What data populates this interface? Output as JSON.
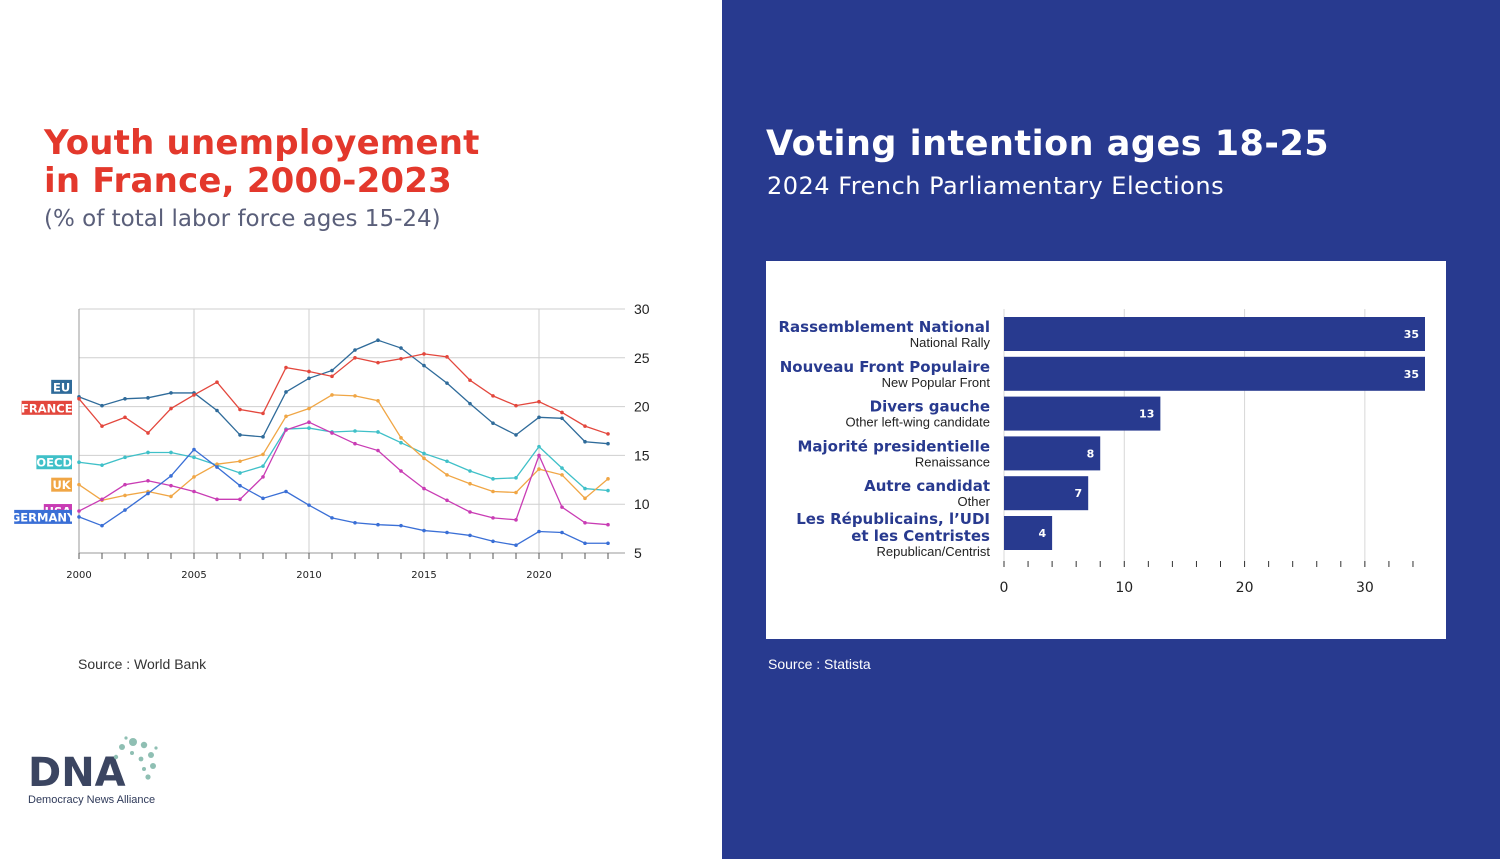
{
  "left": {
    "title_line1": "Youth unemployement",
    "title_line2": "in France, 2000-2023",
    "subtitle": "(% of total labor force ages 15-24)",
    "source": "Source : World Bank"
  },
  "right": {
    "title": "Voting intention ages 18-25",
    "subtitle": "2024 French Parliamentary Elections",
    "source": "Source : Statista"
  },
  "logo": {
    "name": "DNA",
    "tagline": "Democracy News Alliance",
    "colors": {
      "text": "#3b4561",
      "dots": "#8fbfb3"
    }
  },
  "colors": {
    "title_red": "#e3382c",
    "panel_blue": "#283a8f",
    "bar_blue": "#283a8f"
  },
  "chart_data": [
    {
      "type": "line",
      "x": [
        2000,
        2001,
        2002,
        2003,
        2004,
        2005,
        2006,
        2007,
        2008,
        2009,
        2010,
        2011,
        2012,
        2013,
        2014,
        2015,
        2016,
        2017,
        2018,
        2019,
        2020,
        2021,
        2022,
        2023
      ],
      "xticks": [
        2000,
        2005,
        2010,
        2015,
        2020
      ],
      "ylim": [
        5,
        30
      ],
      "yticks": [
        5,
        10,
        15,
        20,
        25,
        30
      ],
      "y_axis_side": "right",
      "grid": true,
      "series": [
        {
          "name": "EU",
          "color": "#2f6b9a",
          "values": [
            21.0,
            20.1,
            20.8,
            20.9,
            21.4,
            21.4,
            19.6,
            17.1,
            16.9,
            21.5,
            22.9,
            23.7,
            25.8,
            26.8,
            26.0,
            24.2,
            22.4,
            20.3,
            18.3,
            17.1,
            18.9,
            18.8,
            16.4,
            16.2
          ]
        },
        {
          "name": "FRANCE",
          "color": "#e3473d",
          "values": [
            20.8,
            18.0,
            18.9,
            17.3,
            19.8,
            21.2,
            22.5,
            19.7,
            19.3,
            24.0,
            23.6,
            23.1,
            25.0,
            24.5,
            24.9,
            25.4,
            25.1,
            22.7,
            21.1,
            20.1,
            20.5,
            19.4,
            18.0,
            17.2
          ]
        },
        {
          "name": "OECD",
          "color": "#3fc0c8",
          "values": [
            14.3,
            14.0,
            14.8,
            15.3,
            15.3,
            14.8,
            14.0,
            13.2,
            13.9,
            17.7,
            17.8,
            17.4,
            17.5,
            17.4,
            16.3,
            15.2,
            14.4,
            13.4,
            12.6,
            12.7,
            15.9,
            13.7,
            11.6,
            11.4
          ]
        },
        {
          "name": "UK",
          "color": "#f0a645",
          "values": [
            12.0,
            10.4,
            10.9,
            11.3,
            10.8,
            12.8,
            14.1,
            14.4,
            15.1,
            19.0,
            19.8,
            21.2,
            21.1,
            20.6,
            16.8,
            14.7,
            13.0,
            12.1,
            11.3,
            11.2,
            13.6,
            13.0,
            10.6,
            12.6
          ]
        },
        {
          "name": "USA",
          "color": "#c93cb4",
          "values": [
            9.3,
            10.5,
            12.0,
            12.4,
            11.9,
            11.3,
            10.5,
            10.5,
            12.8,
            17.6,
            18.4,
            17.3,
            16.2,
            15.5,
            13.4,
            11.6,
            10.4,
            9.2,
            8.6,
            8.4,
            15.0,
            9.7,
            8.1,
            7.9
          ]
        },
        {
          "name": "GERMANY",
          "color": "#3a6fd6",
          "values": [
            8.7,
            7.8,
            9.4,
            11.1,
            12.9,
            15.6,
            13.8,
            11.9,
            10.6,
            11.3,
            9.9,
            8.6,
            8.1,
            7.9,
            7.8,
            7.3,
            7.1,
            6.8,
            6.2,
            5.8,
            7.2,
            7.1,
            6.0,
            6.0
          ]
        }
      ]
    },
    {
      "type": "bar",
      "orientation": "horizontal",
      "xlim": [
        0,
        35
      ],
      "xticks": [
        0,
        10,
        20,
        30
      ],
      "grid": true,
      "categories": [
        {
          "label": "Rassemblement National",
          "sublabel": "National Rally"
        },
        {
          "label": "Nouveau Front Populaire",
          "sublabel": "New Popular Front"
        },
        {
          "label": "Divers gauche",
          "sublabel": "Other left-wing candidate"
        },
        {
          "label": "Majorité presidentielle",
          "sublabel": "Renaissance"
        },
        {
          "label": "Autre candidat",
          "sublabel": "Other"
        },
        {
          "label": "Les Républicains, l’UDI",
          "label2": "et les Centristes",
          "sublabel": "Republican/Centrist"
        }
      ],
      "values": [
        35,
        35,
        13,
        8,
        7,
        4
      ],
      "value_labels": [
        "35",
        "35",
        "13",
        "8",
        "7",
        "4"
      ]
    }
  ]
}
